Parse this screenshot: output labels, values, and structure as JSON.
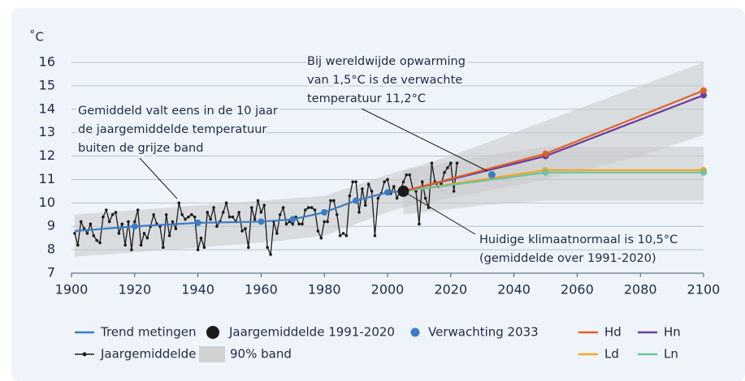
{
  "chart_data": {
    "type": "line",
    "y_unit": "˚C",
    "xlim": [
      1900,
      2100
    ],
    "ylim": [
      7,
      16
    ],
    "xticks": [
      1900,
      1920,
      1940,
      1960,
      1980,
      2000,
      2020,
      2040,
      2060,
      2080,
      2100
    ],
    "yticks": [
      7,
      8,
      9,
      10,
      11,
      12,
      13,
      14,
      15,
      16
    ],
    "grid": true,
    "band": {
      "name": "90% band",
      "color": "#c9c9c9",
      "ranges": [
        {
          "x": [
            1901,
            1960,
            1980,
            2000,
            2005,
            2020,
            2050,
            2080,
            2100
          ],
          "lower": [
            7.7,
            8.3,
            8.6,
            9.6,
            9.8,
            10.2,
            11.0,
            12.0,
            12.9
          ],
          "upper": [
            9.5,
            10.1,
            10.3,
            11.2,
            11.4,
            12.0,
            13.5,
            15.0,
            16.0
          ]
        },
        {
          "x": [
            2005,
            2030,
            2050,
            2100
          ],
          "lower": [
            9.5,
            9.9,
            10.1,
            10.1
          ],
          "upper": [
            11.4,
            12.0,
            12.4,
            12.4
          ]
        }
      ]
    },
    "series": [
      {
        "name": "Jaargemiddelde",
        "color": "#1a1a1a",
        "marker": "dot",
        "x": [
          1901,
          1902,
          1903,
          1904,
          1905,
          1906,
          1907,
          1908,
          1909,
          1910,
          1911,
          1912,
          1913,
          1914,
          1915,
          1916,
          1917,
          1918,
          1919,
          1920,
          1921,
          1922,
          1923,
          1924,
          1925,
          1926,
          1927,
          1928,
          1929,
          1930,
          1931,
          1932,
          1933,
          1934,
          1935,
          1936,
          1937,
          1938,
          1939,
          1940,
          1941,
          1942,
          1943,
          1944,
          1945,
          1946,
          1947,
          1948,
          1949,
          1950,
          1951,
          1952,
          1953,
          1954,
          1955,
          1956,
          1957,
          1958,
          1959,
          1960,
          1961,
          1962,
          1963,
          1964,
          1965,
          1966,
          1967,
          1968,
          1969,
          1970,
          1971,
          1972,
          1973,
          1974,
          1975,
          1976,
          1977,
          1978,
          1979,
          1980,
          1981,
          1982,
          1983,
          1984,
          1985,
          1986,
          1987,
          1988,
          1989,
          1990,
          1991,
          1992,
          1993,
          1994,
          1995,
          1996,
          1997,
          1998,
          1999,
          2000,
          2001,
          2002,
          2003,
          2004,
          2005,
          2006,
          2007,
          2008,
          2009,
          2010,
          2011,
          2012,
          2013,
          2014,
          2015,
          2016,
          2017,
          2018,
          2019,
          2020,
          2021,
          2022
        ],
        "values": [
          8.7,
          8.2,
          9.2,
          8.9,
          8.7,
          9.1,
          8.6,
          8.4,
          8.3,
          9.4,
          9.7,
          9.2,
          9.5,
          9.6,
          8.7,
          9.1,
          8.2,
          9.2,
          8.0,
          9.2,
          9.7,
          8.2,
          8.7,
          8.5,
          9.0,
          9.5,
          9.1,
          9.0,
          8.1,
          9.5,
          8.6,
          9.2,
          8.9,
          10.0,
          9.5,
          9.3,
          9.4,
          9.5,
          9.4,
          8.0,
          8.5,
          8.1,
          9.6,
          9.3,
          9.8,
          9.0,
          9.2,
          9.6,
          10.0,
          9.4,
          9.4,
          9.2,
          9.6,
          8.8,
          8.9,
          8.1,
          9.8,
          9.3,
          10.1,
          9.6,
          9.9,
          8.1,
          7.8,
          9.2,
          8.7,
          9.5,
          9.8,
          9.1,
          9.2,
          9.1,
          9.4,
          9.1,
          9.1,
          9.7,
          9.8,
          9.8,
          9.7,
          8.8,
          8.5,
          9.2,
          9.2,
          10.1,
          10.1,
          9.5,
          8.6,
          8.7,
          8.6,
          10.3,
          10.9,
          10.9,
          9.6,
          10.6,
          9.9,
          10.8,
          10.5,
          8.6,
          10.2,
          10.4,
          10.9,
          11.0,
          10.4,
          10.7,
          10.2,
          10.5,
          10.9,
          11.2,
          11.2,
          10.6,
          10.5,
          9.1,
          10.9,
          10.2,
          9.8,
          11.7,
          10.9,
          10.7,
          10.8,
          11.3,
          11.5,
          11.7,
          10.5,
          11.7
        ]
      },
      {
        "name": "Trend metingen",
        "color": "#3a7dc4",
        "x": [
          1901,
          1920,
          1940,
          1960,
          1970,
          1980,
          1990,
          2000,
          2005
        ],
        "values": [
          8.8,
          9.0,
          9.15,
          9.2,
          9.3,
          9.6,
          10.1,
          10.45,
          10.5
        ]
      },
      {
        "name": "Ld",
        "color": "#f5a623",
        "x": [
          2005,
          2050,
          2100
        ],
        "values": [
          10.5,
          11.4,
          11.4
        ]
      },
      {
        "name": "Ln",
        "color": "#6cc3a0",
        "x": [
          2005,
          2050,
          2100
        ],
        "values": [
          10.5,
          11.3,
          11.3
        ]
      },
      {
        "name": "Hn",
        "color": "#6a3d9a",
        "x": [
          2005,
          2050,
          2100
        ],
        "values": [
          10.5,
          12.0,
          14.6
        ]
      },
      {
        "name": "Hd",
        "color": "#e0622a",
        "x": [
          2005,
          2050,
          2100
        ],
        "values": [
          10.5,
          12.1,
          14.8
        ]
      }
    ],
    "points": [
      {
        "name": "Jaargemiddelde 1991-2020",
        "color": "#1a1a1a",
        "x": 2005,
        "value": 10.5
      },
      {
        "name": "Verwachting 2033",
        "color": "#3a7dc4",
        "x": 2033,
        "value": 11.2
      }
    ],
    "annotations": [
      {
        "lines": [
          "Bij wereldwijde opwarming",
          "van 1,5°C is de verwachte",
          "temperatuur 11,2°C"
        ]
      },
      {
        "lines": [
          "Gemiddeld valt eens in de 10 jaar",
          "de jaargemiddelde temperatuur",
          "buiten de grijze band"
        ]
      },
      {
        "lines": [
          "Huidige klimaatnormaal is 10,5°C",
          "(gemiddelde over 1991-2020)"
        ]
      }
    ]
  }
}
